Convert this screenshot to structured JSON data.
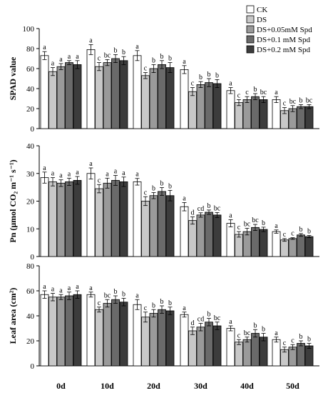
{
  "figure": {
    "x_categories": [
      "0d",
      "10d",
      "20d",
      "30d",
      "40d",
      "50d"
    ],
    "legend": [
      {
        "label": "CK",
        "color": "#ffffff"
      },
      {
        "label": "DS",
        "color": "#c8c8c8"
      },
      {
        "label": "DS+0.05mM Spd",
        "color": "#9a9a9a"
      },
      {
        "label": "DS+0.1 mM Spd",
        "color": "#6a6a6a"
      },
      {
        "label": "DS+0.2 mM Spd",
        "color": "#3c3c3c"
      }
    ]
  },
  "chart_data": [
    {
      "type": "bar",
      "ylabel": "SPAD value",
      "ylim": [
        0,
        100
      ],
      "yticks": [
        0,
        20,
        40,
        60,
        80,
        100
      ],
      "categories": [
        "0d",
        "10d",
        "20d",
        "30d",
        "40d",
        "50d"
      ],
      "series": [
        {
          "name": "CK",
          "values": [
            73,
            79,
            73,
            59,
            38,
            29
          ],
          "errors": [
            4,
            5,
            5,
            4,
            3,
            3
          ],
          "letters": [
            "a",
            "a",
            "a",
            "a",
            "a",
            "a"
          ]
        },
        {
          "name": "DS",
          "values": [
            57,
            62,
            53,
            37,
            26,
            18
          ],
          "errors": [
            4,
            4,
            3,
            4,
            3,
            3
          ],
          "letters": [
            "a",
            "c",
            "c",
            "c",
            "c",
            "c"
          ]
        },
        {
          "name": "DS+0.05mM Spd",
          "values": [
            62,
            66,
            60,
            44,
            29,
            20
          ],
          "errors": [
            3,
            3,
            4,
            3,
            3,
            3
          ],
          "letters": [
            "a",
            "bc",
            "b",
            "b",
            "c",
            "bc"
          ]
        },
        {
          "name": "DS+0.1 mM Spd",
          "values": [
            66,
            70,
            64,
            46,
            32,
            22
          ],
          "errors": [
            2,
            4,
            4,
            4,
            3,
            2
          ],
          "letters": [
            "a",
            "b",
            "b",
            "b",
            "b",
            "b"
          ]
        },
        {
          "name": "DS+0.2 mM Spd",
          "values": [
            64,
            68,
            61,
            45,
            29,
            22
          ],
          "errors": [
            4,
            4,
            5,
            4,
            3,
            2
          ],
          "letters": [
            "a",
            "b",
            "b",
            "b",
            "bc",
            "bc"
          ]
        }
      ]
    },
    {
      "type": "bar",
      "ylabel": "Pn (μmol CO₂ m⁻¹ s⁻¹)",
      "ylim": [
        0,
        40
      ],
      "yticks": [
        0,
        10,
        20,
        30,
        40
      ],
      "categories": [
        "0d",
        "10d",
        "20d",
        "30d",
        "40d",
        "50d"
      ],
      "series": [
        {
          "name": "CK",
          "values": [
            28.5,
            30,
            27,
            18,
            12,
            9
          ],
          "errors": [
            2,
            2,
            1.2,
            1.5,
            1.3,
            0.6
          ],
          "letters": [
            "a",
            "a",
            "a",
            "a",
            "a",
            "a"
          ]
        },
        {
          "name": "DS",
          "values": [
            27,
            24.5,
            20,
            13,
            8,
            6
          ],
          "errors": [
            1.5,
            1.5,
            1.6,
            1.3,
            1,
            0.5
          ],
          "letters": [
            "a",
            "c",
            "c",
            "d",
            "c",
            "c"
          ]
        },
        {
          "name": "DS+0.05mM Spd",
          "values": [
            26.5,
            26.5,
            22,
            15,
            9,
            6.5
          ],
          "errors": [
            1.2,
            1.8,
            1.1,
            0.8,
            1.2,
            0.3
          ],
          "letters": [
            "a",
            "a",
            "b",
            "cd",
            "bc",
            "c"
          ]
        },
        {
          "name": "DS+0.1 mM Spd",
          "values": [
            27,
            27.5,
            23.5,
            16,
            10.5,
            7.8
          ],
          "errors": [
            1.3,
            1.8,
            1.4,
            0.8,
            1.1,
            0.5
          ],
          "letters": [
            "a",
            "a",
            "b",
            "b",
            "bc",
            "b"
          ]
        },
        {
          "name": "DS+0.2 mM Spd",
          "values": [
            27.5,
            27,
            22,
            15,
            9.8,
            7.2
          ],
          "errors": [
            1.4,
            1.7,
            1.9,
            0.9,
            0.8,
            0.4
          ],
          "letters": [
            "a",
            "a",
            "b",
            "bc",
            "b",
            "b"
          ]
        }
      ]
    },
    {
      "type": "bar",
      "ylabel": "Leaf area (cm²)",
      "ylim": [
        0,
        80
      ],
      "yticks": [
        0,
        20,
        40,
        60,
        80
      ],
      "categories": [
        "0d",
        "10d",
        "20d",
        "30d",
        "40d",
        "50d"
      ],
      "series": [
        {
          "name": "CK",
          "values": [
            57,
            57,
            49,
            41,
            30,
            21
          ],
          "errors": [
            3,
            2,
            4,
            2,
            2,
            2
          ],
          "letters": [
            "a",
            "a",
            "a",
            "a",
            "a",
            "a"
          ]
        },
        {
          "name": "DS",
          "values": [
            55,
            45,
            39,
            28,
            19,
            13
          ],
          "errors": [
            3,
            2,
            4,
            3,
            2,
            2
          ],
          "letters": [
            "a",
            "c",
            "c",
            "d",
            "c",
            "c"
          ]
        },
        {
          "name": "DS+0.05mM Spd",
          "values": [
            55,
            50,
            42,
            31,
            21,
            15
          ],
          "errors": [
            2,
            3,
            3,
            3,
            2,
            2
          ],
          "letters": [
            "a",
            "bc",
            "b",
            "cd",
            "bc",
            "c"
          ]
        },
        {
          "name": "DS+0.1 mM Spd",
          "values": [
            56,
            53,
            45,
            35,
            26,
            18
          ],
          "errors": [
            3,
            3,
            3,
            3,
            3,
            2
          ],
          "letters": [
            "a",
            "b",
            "b",
            "b",
            "b",
            "b"
          ]
        },
        {
          "name": "DS+0.2 mM Spd",
          "values": [
            57,
            51,
            44,
            32,
            23,
            16
          ],
          "errors": [
            3,
            3,
            3,
            3,
            3,
            2
          ],
          "letters": [
            "a",
            "b",
            "b",
            "bc",
            "b",
            "b"
          ]
        }
      ]
    }
  ]
}
